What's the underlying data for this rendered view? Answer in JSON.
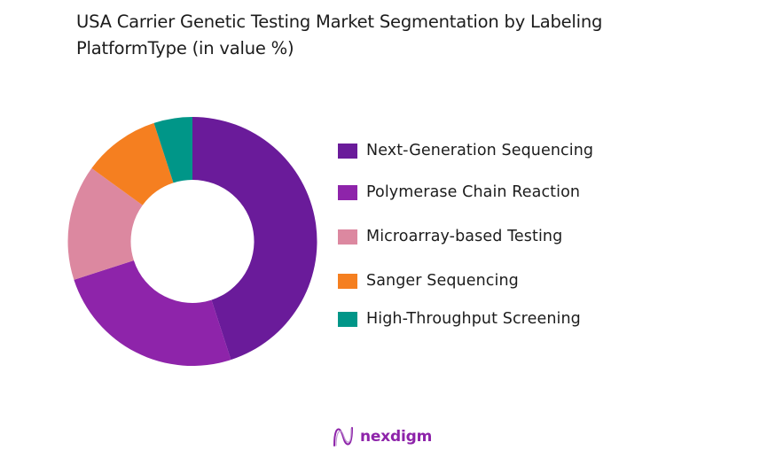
{
  "title": "USA Carrier Genetic Testing Market Segmentation by Labeling PlatformType (in value %)",
  "title_line1": "USA Carrier Genetic Testing Market Segmentation by Labeling",
  "title_line2": "PlatformType (in value %)",
  "chart_data": {
    "type": "pie",
    "subtype": "donut",
    "title": "USA Carrier Genetic Testing Market Segmentation by Labeling PlatformType (in value %)",
    "categories": [
      "Next-Generation Sequencing",
      "Polymerase Chain Reaction",
      "Microarray-based Testing",
      "Sanger Sequencing",
      "High-Throughput Screening"
    ],
    "values": [
      45,
      25,
      15,
      10,
      5
    ],
    "colors": [
      "#6A1B9A",
      "#8E24AA",
      "#DC88A0",
      "#F57F20",
      "#009688"
    ],
    "start_angle": "12 o'clock, clockwise",
    "legend_position": "right",
    "data_labels": false
  },
  "legend": {
    "items": [
      {
        "label": "Next-Generation Sequencing",
        "color": "#6A1B9A"
      },
      {
        "label": "Polymerase Chain Reaction",
        "color": "#8E24AA"
      },
      {
        "label": "Microarray-based Testing",
        "color": "#DC88A0"
      },
      {
        "label": "Sanger Sequencing",
        "color": "#F57F20"
      },
      {
        "label": "High-Throughput Screening",
        "color": "#009688"
      }
    ]
  },
  "footer": {
    "logo_text": "nexdigm",
    "logo_icon": "wave-n-icon"
  }
}
